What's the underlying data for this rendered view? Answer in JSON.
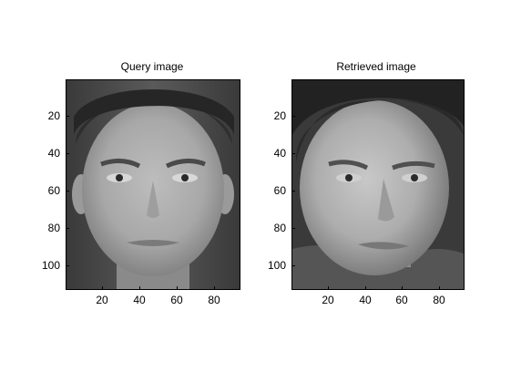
{
  "panels": [
    {
      "title": "Query image",
      "yticks": [
        "20",
        "40",
        "60",
        "80",
        "100"
      ],
      "xticks": [
        "20",
        "40",
        "60",
        "80"
      ]
    },
    {
      "title": "Retrieved image",
      "yticks": [
        "20",
        "40",
        "60",
        "80",
        "100"
      ],
      "xticks": [
        "20",
        "40",
        "60",
        "80"
      ]
    }
  ]
}
